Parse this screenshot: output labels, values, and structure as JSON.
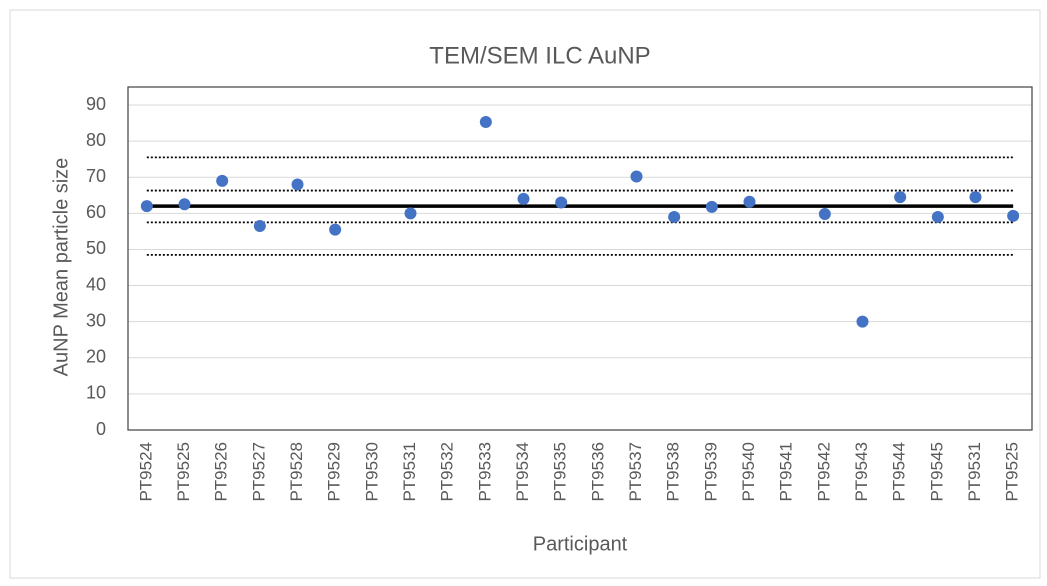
{
  "chart_data": {
    "type": "scatter",
    "title": "TEM/SEM ILC AuNP",
    "x_label": "Participant",
    "y_label": "AuNP Mean particle size",
    "categories": [
      "PT9524",
      "PT9525",
      "PT9526",
      "PT9527",
      "PT9528",
      "PT9529",
      "PT9530",
      "PT9531",
      "PT9532",
      "PT9533",
      "PT9534",
      "PT9535",
      "PT9536",
      "PT9537",
      "PT9538",
      "PT9539",
      "PT9540",
      "PT9541",
      "PT9542",
      "PT9543",
      "PT9544",
      "PT9545",
      "PT9531",
      "PT9525"
    ],
    "values": [
      62,
      62.5,
      69,
      56.5,
      68,
      55.5,
      null,
      60,
      null,
      85.3,
      64,
      63,
      null,
      70.2,
      59,
      61.8,
      63.2,
      null,
      59.8,
      30,
      64.5,
      59,
      64.5,
      59.3
    ],
    "color": "#4472c4",
    "reference_lines": [
      {
        "value": 62,
        "style": "solid"
      },
      {
        "value": 75.5,
        "style": "dotted"
      },
      {
        "value": 66.3,
        "style": "dotted"
      },
      {
        "value": 57.5,
        "style": "dotted"
      },
      {
        "value": 48.5,
        "style": "dotted"
      }
    ],
    "ylim": [
      0,
      90
    ],
    "yticks": [
      0,
      10,
      20,
      30,
      40,
      50,
      60,
      70,
      80,
      90
    ],
    "grid": true
  }
}
